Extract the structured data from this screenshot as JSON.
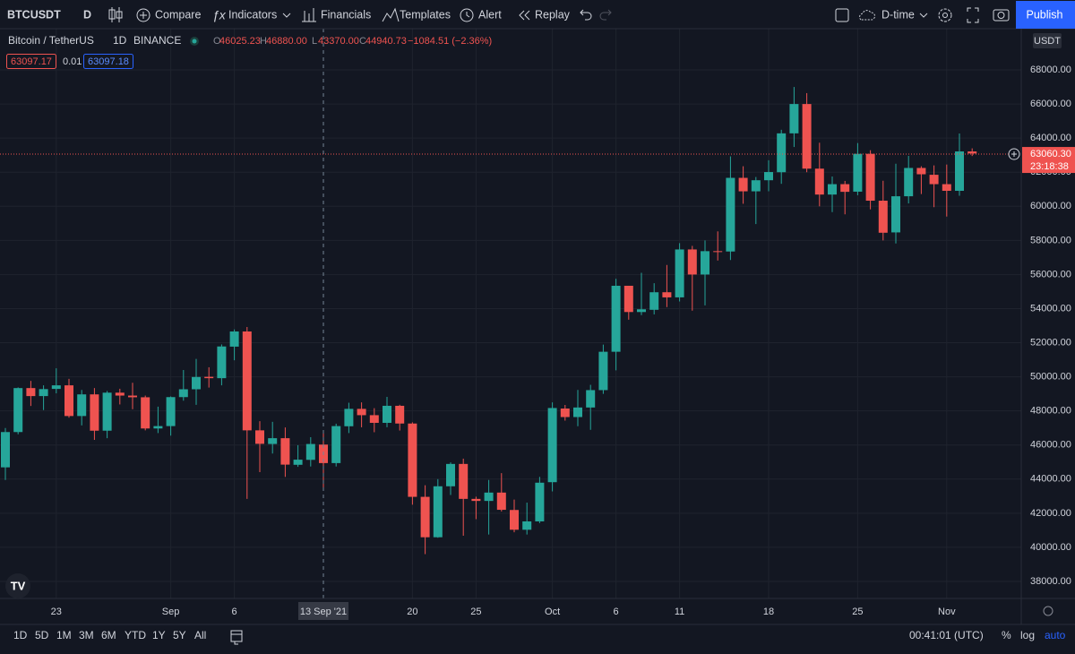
{
  "toolbar": {
    "symbol": "BTCUSDT",
    "interval": "D",
    "compare": "Compare",
    "indicators": "Indicators",
    "financials": "Financials",
    "templates": "Templates",
    "alert": "Alert",
    "replay": "Replay",
    "layout": "D-time",
    "publish": "Publish"
  },
  "legend": {
    "name": "Bitcoin / TetherUS",
    "interval": "1D",
    "exchange": "BINANCE",
    "ohlc": [
      {
        "label": "O",
        "value": "46025.23"
      },
      {
        "label": "H",
        "value": "46880.00"
      },
      {
        "label": "L",
        "value": "43370.00"
      },
      {
        "label": "C",
        "value": "44940.73"
      }
    ],
    "change": "−1084.51 (−2.36%)",
    "bid": "63097.17",
    "spread": "0.01",
    "ask": "63097.18"
  },
  "bottom_bar": {
    "ranges": [
      "1D",
      "5D",
      "1M",
      "3M",
      "6M",
      "YTD",
      "1Y",
      "5Y",
      "All"
    ],
    "time": "00:41:01 (UTC)",
    "percent": "%",
    "log": "log",
    "auto": "auto"
  },
  "chart_data": {
    "type": "candlestick",
    "categories": [
      null,
      null,
      null,
      null,
      "23",
      null,
      null,
      null,
      null,
      null,
      null,
      null,
      null,
      "Sep",
      null,
      null,
      null,
      null,
      "6",
      null,
      null,
      null,
      null,
      null,
      null,
      null,
      null,
      null,
      null,
      null,
      null,
      null,
      "20",
      null,
      null,
      null,
      null,
      "25",
      null,
      null,
      null,
      null,
      null,
      "Oct",
      null,
      null,
      null,
      null,
      "6",
      null,
      null,
      null,
      null,
      "11",
      null,
      null,
      null,
      null,
      null,
      null,
      "18",
      null,
      null,
      null,
      null,
      null,
      null,
      "25",
      null,
      null,
      null,
      null,
      null,
      null,
      "Nov",
      null,
      null
    ],
    "open": [
      44690,
      46760,
      49340,
      48870,
      49290,
      49500,
      47700,
      48970,
      46840,
      49070,
      48900,
      48800,
      46970,
      47110,
      48810,
      49270,
      50000,
      49920,
      51770,
      52660,
      46860,
      46060,
      46400,
      44840,
      45130,
      46025.23,
      44940,
      47100,
      48120,
      47750,
      47300,
      48300,
      47260,
      42960,
      40590,
      43580,
      44890,
      42840,
      42720,
      43210,
      42190,
      41030,
      41520,
      43820,
      48140,
      47640,
      48200,
      49220,
      51470,
      55340,
      53800,
      53930,
      54960,
      54660,
      57470,
      56000,
      57370,
      57350,
      61670,
      60880,
      61530,
      62000,
      64280,
      66000,
      62210,
      60690,
      61300,
      60860,
      63080,
      60330,
      58470,
      60590,
      62250,
      61850,
      61300,
      60910,
      63220
    ],
    "high": [
      47000,
      49380,
      49760,
      49500,
      50500,
      49880,
      49230,
      49340,
      49170,
      49300,
      49650,
      48900,
      48250,
      48850,
      50400,
      51050,
      50560,
      51900,
      52780,
      52920,
      47400,
      47360,
      47030,
      45990,
      46460,
      46880,
      47250,
      48480,
      48500,
      48160,
      48820,
      48360,
      47330,
      43640,
      44000,
      44980,
      45200,
      42970,
      43950,
      44350,
      42800,
      42620,
      44130,
      48500,
      48350,
      49230,
      49530,
      51890,
      55750,
      55340,
      56100,
      55490,
      56560,
      57840,
      57680,
      58000,
      58530,
      62930,
      62350,
      61720,
      62700,
      64490,
      67000,
      66640,
      63730,
      61750,
      61490,
      63710,
      63290,
      61500,
      62500,
      62960,
      62350,
      62400,
      62450,
      64270,
      63400
    ],
    "low": [
      43950,
      46630,
      48290,
      48050,
      49030,
      47600,
      47150,
      46300,
      46400,
      48380,
      48100,
      46860,
      46700,
      46550,
      48600,
      48360,
      49370,
      49500,
      50970,
      42840,
      44410,
      45500,
      44130,
      44720,
      44740,
      43370,
      44740,
      46700,
      47040,
      46750,
      47040,
      46850,
      42500,
      39600,
      40560,
      43070,
      40680,
      41650,
      40750,
      42100,
      40880,
      40750,
      41420,
      43280,
      47430,
      47100,
      46890,
      49000,
      50380,
      53350,
      53620,
      53660,
      54090,
      54420,
      53880,
      54190,
      56820,
      56850,
      60150,
      58960,
      60880,
      61320,
      63480,
      62000,
      60000,
      59660,
      59530,
      60650,
      59820,
      58000,
      57820,
      60170,
      60720,
      59950,
      59400,
      60620,
      62950
    ],
    "close": [
      46760,
      49340,
      48870,
      49280,
      49500,
      47700,
      48970,
      46840,
      49070,
      48900,
      48800,
      46970,
      47110,
      48810,
      49270,
      49990,
      49920,
      51780,
      52660,
      46860,
      46070,
      46400,
      44850,
      45140,
      46060,
      44940.73,
      47110,
      48120,
      47750,
      47300,
      48300,
      47260,
      42960,
      40590,
      43580,
      44890,
      42840,
      42720,
      43210,
      42200,
      41030,
      41520,
      43790,
      48170,
      47640,
      48200,
      49220,
      51470,
      55340,
      53800,
      53960,
      54960,
      54660,
      57470,
      56000,
      57370,
      57350,
      61670,
      60880,
      61530,
      62010,
      64280,
      66000,
      62210,
      60690,
      61300,
      60850,
      63080,
      60330,
      58450,
      60590,
      62250,
      61880,
      61300,
      60910,
      63220,
      63100
    ],
    "up_color": "#26a69a",
    "down_color": "#ef5350",
    "ylim": [
      37000,
      70420
    ],
    "yticks": [
      {
        "value": 38000,
        "label": "38000.00"
      },
      {
        "value": 40000,
        "label": "40000.00"
      },
      {
        "value": 42000,
        "label": "42000.00"
      },
      {
        "value": 44000,
        "label": "44000.00"
      },
      {
        "value": 46000,
        "label": "46000.00"
      },
      {
        "value": 48000,
        "label": "48000.00"
      },
      {
        "value": 50000,
        "label": "50000.00"
      },
      {
        "value": 52000,
        "label": "52000.00"
      },
      {
        "value": 54000,
        "label": "54000.00"
      },
      {
        "value": 56000,
        "label": "56000.00"
      },
      {
        "value": 58000,
        "label": "58000.00"
      },
      {
        "value": 60000,
        "label": "60000.00"
      },
      {
        "value": 62000,
        "label": "62000.00"
      },
      {
        "value": 64000,
        "label": "64000.00"
      },
      {
        "value": 66000,
        "label": "66000.00"
      },
      {
        "value": 68000,
        "label": "68000.00"
      }
    ],
    "grid": true,
    "currency": "USDT",
    "last_price": {
      "value": 63060.3,
      "label": "63060.30"
    },
    "countdown": "23:18:38",
    "crosshair_label": "13 Sep '21"
  }
}
